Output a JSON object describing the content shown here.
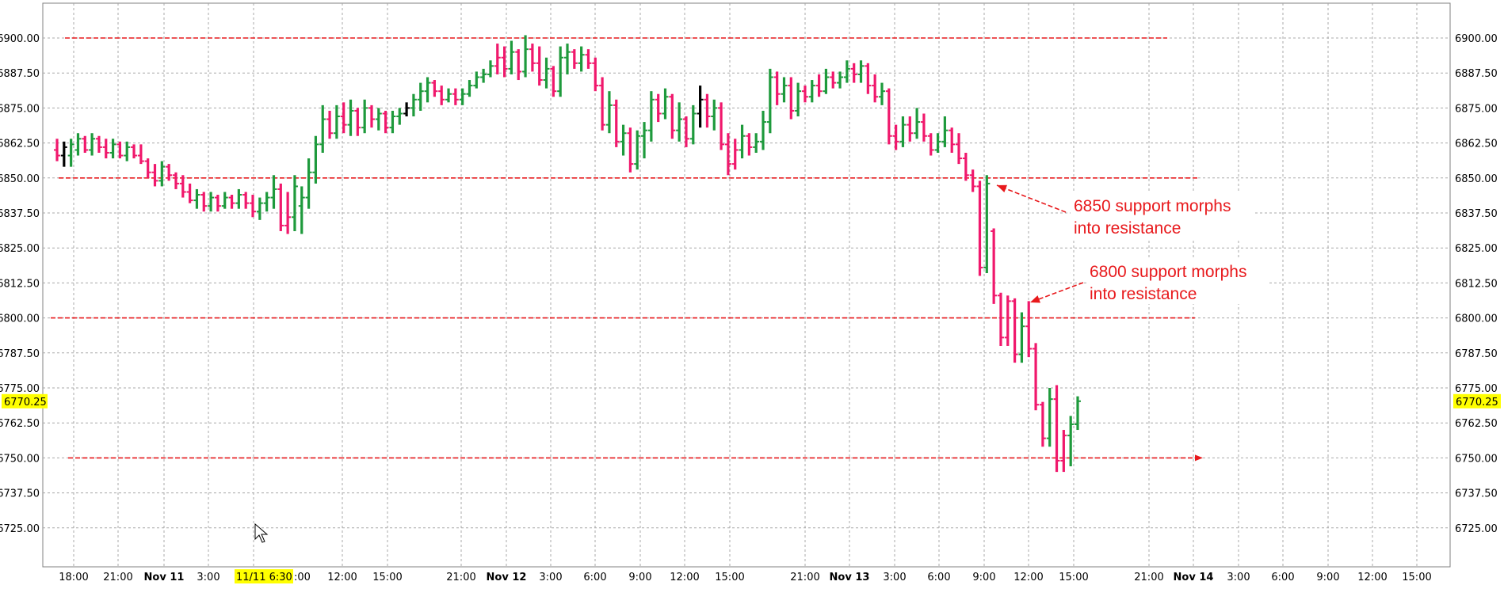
{
  "colors": {
    "up": "#1e9a3c",
    "down": "#f0186c",
    "neutral": "#000000",
    "level_line": "#e8191c",
    "annotation": "#e8191c",
    "highlight": "#ffff00",
    "grid": "#a8a8a8"
  },
  "cursor_icon": "mouse-pointer-icon",
  "chart_data": {
    "type": "ohlc",
    "title": "",
    "xlabel": "",
    "ylabel": "",
    "ylim": [
      6716,
      6906
    ],
    "grid": true,
    "y_ticks": [
      "6900.00",
      "6887.50",
      "6875.00",
      "6862.50",
      "6850.00",
      "6837.50",
      "6825.00",
      "6812.50",
      "6800.00",
      "6787.50",
      "6775.00",
      "6762.50",
      "6750.00",
      "6737.50",
      "6725.00"
    ],
    "x_ticks": [
      {
        "label": "18:00",
        "bold": false
      },
      {
        "label": "21:00",
        "bold": false
      },
      {
        "label": "Nov 11",
        "bold": true
      },
      {
        "label": "3:00",
        "bold": false
      },
      {
        "label": "11/11 6:30",
        "bold": false,
        "highlight": true
      },
      {
        "label": "12:00",
        "bold": false
      },
      {
        "label": "15:00",
        "bold": false
      },
      {
        "label": "21:00",
        "bold": false
      },
      {
        "label": "Nov 12",
        "bold": true
      },
      {
        "label": "3:00",
        "bold": false
      },
      {
        "label": "6:00",
        "bold": false
      },
      {
        "label": "9:00",
        "bold": false
      },
      {
        "label": "12:00",
        "bold": false
      },
      {
        "label": "15:00",
        "bold": false
      },
      {
        "label": "21:00",
        "bold": false
      },
      {
        "label": "Nov 13",
        "bold": true
      },
      {
        "label": "3:00",
        "bold": false
      },
      {
        "label": "6:00",
        "bold": false
      },
      {
        "label": "9:00",
        "bold": false
      },
      {
        "label": "12:00",
        "bold": false
      },
      {
        "label": "15:00",
        "bold": false
      },
      {
        "label": "21:00",
        "bold": false
      },
      {
        "label": "Nov 14",
        "bold": true
      },
      {
        "label": "3:00",
        "bold": false
      },
      {
        "label": "6:00",
        "bold": false
      },
      {
        "label": "9:00",
        "bold": false
      },
      {
        "label": "12:00",
        "bold": false
      },
      {
        "label": "15:00",
        "bold": false
      }
    ],
    "last_price": "6770.25",
    "horizontal_levels": [
      {
        "price": 6900,
        "extends_to": "Nov 14",
        "arrow": false
      },
      {
        "price": 6850,
        "extends_to": "Nov 14",
        "arrow": false
      },
      {
        "price": 6800,
        "extends_to": "Nov 14",
        "arrow": false
      },
      {
        "price": 6750,
        "extends_to": "Nov 14",
        "arrow": true
      }
    ],
    "annotations": [
      {
        "lines": [
          "6850 support morphs",
          "into resistance"
        ],
        "points_to": 6850
      },
      {
        "lines": [
          "6800 support morphs",
          " into resistance"
        ],
        "points_to": 6805
      }
    ],
    "bars": [
      {
        "o": 6860,
        "h": 6864,
        "l": 6856,
        "c": 6858,
        "d": "down"
      },
      {
        "o": 6858,
        "h": 6863,
        "l": 6854,
        "c": 6861,
        "d": "neutral"
      },
      {
        "o": 6858,
        "h": 6864,
        "l": 6854,
        "c": 6862,
        "d": "up"
      },
      {
        "o": 6860,
        "h": 6866,
        "l": 6858,
        "c": 6864,
        "d": "up"
      },
      {
        "o": 6864,
        "h": 6865,
        "l": 6859,
        "c": 6860,
        "d": "down"
      },
      {
        "o": 6860,
        "h": 6866,
        "l": 6858,
        "c": 6864,
        "d": "up"
      },
      {
        "o": 6864,
        "h": 6865,
        "l": 6859,
        "c": 6861,
        "d": "down"
      },
      {
        "o": 6861,
        "h": 6864,
        "l": 6857,
        "c": 6859,
        "d": "down"
      },
      {
        "o": 6859,
        "h": 6864,
        "l": 6857,
        "c": 6862,
        "d": "up"
      },
      {
        "o": 6862,
        "h": 6863,
        "l": 6857,
        "c": 6858,
        "d": "down"
      },
      {
        "o": 6858,
        "h": 6863,
        "l": 6856,
        "c": 6861,
        "d": "up"
      },
      {
        "o": 6861,
        "h": 6862,
        "l": 6857,
        "c": 6858,
        "d": "down"
      },
      {
        "o": 6858,
        "h": 6862,
        "l": 6855,
        "c": 6856,
        "d": "down"
      },
      {
        "o": 6856,
        "h": 6857,
        "l": 6850,
        "c": 6852,
        "d": "down"
      },
      {
        "o": 6852,
        "h": 6855,
        "l": 6847,
        "c": 6849,
        "d": "down"
      },
      {
        "o": 6849,
        "h": 6856,
        "l": 6847,
        "c": 6854,
        "d": "up"
      },
      {
        "o": 6854,
        "h": 6855,
        "l": 6849,
        "c": 6851,
        "d": "down"
      },
      {
        "o": 6851,
        "h": 6852,
        "l": 6846,
        "c": 6848,
        "d": "down"
      },
      {
        "o": 6848,
        "h": 6851,
        "l": 6843,
        "c": 6845,
        "d": "down"
      },
      {
        "o": 6845,
        "h": 6848,
        "l": 6841,
        "c": 6842,
        "d": "down"
      },
      {
        "o": 6842,
        "h": 6846,
        "l": 6839,
        "c": 6844,
        "d": "up"
      },
      {
        "o": 6844,
        "h": 6845,
        "l": 6838,
        "c": 6840,
        "d": "down"
      },
      {
        "o": 6840,
        "h": 6845,
        "l": 6838,
        "c": 6843,
        "d": "up"
      },
      {
        "o": 6843,
        "h": 6844,
        "l": 6838,
        "c": 6840,
        "d": "down"
      },
      {
        "o": 6840,
        "h": 6845,
        "l": 6839,
        "c": 6843,
        "d": "up"
      },
      {
        "o": 6843,
        "h": 6844,
        "l": 6839,
        "c": 6841,
        "d": "down"
      },
      {
        "o": 6841,
        "h": 6846,
        "l": 6839,
        "c": 6844,
        "d": "up"
      },
      {
        "o": 6844,
        "h": 6845,
        "l": 6839,
        "c": 6841,
        "d": "down"
      },
      {
        "o": 6841,
        "h": 6844,
        "l": 6836,
        "c": 6838,
        "d": "down"
      },
      {
        "o": 6838,
        "h": 6843,
        "l": 6835,
        "c": 6841,
        "d": "up"
      },
      {
        "o": 6841,
        "h": 6845,
        "l": 6838,
        "c": 6843,
        "d": "up"
      },
      {
        "o": 6843,
        "h": 6851,
        "l": 6839,
        "c": 6846,
        "d": "up"
      },
      {
        "o": 6846,
        "h": 6848,
        "l": 6831,
        "c": 6833,
        "d": "down"
      },
      {
        "o": 6833,
        "h": 6845,
        "l": 6830,
        "c": 6836,
        "d": "down"
      },
      {
        "o": 6836,
        "h": 6851,
        "l": 6831,
        "c": 6847,
        "d": "up"
      },
      {
        "o": 6840,
        "h": 6847,
        "l": 6830,
        "c": 6843,
        "d": "up"
      },
      {
        "o": 6843,
        "h": 6857,
        "l": 6839,
        "c": 6852,
        "d": "up"
      },
      {
        "o": 6852,
        "h": 6865,
        "l": 6848,
        "c": 6862,
        "d": "up"
      },
      {
        "o": 6862,
        "h": 6876,
        "l": 6859,
        "c": 6871,
        "d": "up"
      },
      {
        "o": 6871,
        "h": 6874,
        "l": 6864,
        "c": 6866,
        "d": "down"
      },
      {
        "o": 6866,
        "h": 6876,
        "l": 6864,
        "c": 6872,
        "d": "up"
      },
      {
        "o": 6872,
        "h": 6877,
        "l": 6866,
        "c": 6869,
        "d": "down"
      },
      {
        "o": 6869,
        "h": 6878,
        "l": 6865,
        "c": 6874,
        "d": "up"
      },
      {
        "o": 6874,
        "h": 6875,
        "l": 6865,
        "c": 6868,
        "d": "down"
      },
      {
        "o": 6868,
        "h": 6878,
        "l": 6866,
        "c": 6875,
        "d": "up"
      },
      {
        "o": 6875,
        "h": 6876,
        "l": 6868,
        "c": 6871,
        "d": "down"
      },
      {
        "o": 6871,
        "h": 6875,
        "l": 6867,
        "c": 6873,
        "d": "up"
      },
      {
        "o": 6873,
        "h": 6874,
        "l": 6866,
        "c": 6868,
        "d": "down"
      },
      {
        "o": 6868,
        "h": 6874,
        "l": 6866,
        "c": 6872,
        "d": "up"
      },
      {
        "o": 6872,
        "h": 6875,
        "l": 6869,
        "c": 6873,
        "d": "up"
      },
      {
        "o": 6873,
        "h": 6877,
        "l": 6872,
        "c": 6875,
        "d": "neutral"
      },
      {
        "o": 6875,
        "h": 6880,
        "l": 6872,
        "c": 6878,
        "d": "up"
      },
      {
        "o": 6878,
        "h": 6884,
        "l": 6874,
        "c": 6881,
        "d": "up"
      },
      {
        "o": 6881,
        "h": 6886,
        "l": 6877,
        "c": 6884,
        "d": "up"
      },
      {
        "o": 6884,
        "h": 6885,
        "l": 6879,
        "c": 6881,
        "d": "down"
      },
      {
        "o": 6881,
        "h": 6883,
        "l": 6876,
        "c": 6878,
        "d": "down"
      },
      {
        "o": 6878,
        "h": 6882,
        "l": 6877,
        "c": 6880,
        "d": "up"
      },
      {
        "o": 6880,
        "h": 6882,
        "l": 6876,
        "c": 6878,
        "d": "down"
      },
      {
        "o": 6878,
        "h": 6882,
        "l": 6876,
        "c": 6880,
        "d": "up"
      },
      {
        "o": 6880,
        "h": 6885,
        "l": 6879,
        "c": 6883,
        "d": "up"
      },
      {
        "o": 6883,
        "h": 6888,
        "l": 6882,
        "c": 6886,
        "d": "up"
      },
      {
        "o": 6886,
        "h": 6889,
        "l": 6884,
        "c": 6887,
        "d": "up"
      },
      {
        "o": 6887,
        "h": 6892,
        "l": 6886,
        "c": 6890,
        "d": "up"
      },
      {
        "o": 6890,
        "h": 6898,
        "l": 6887,
        "c": 6893,
        "d": "down"
      },
      {
        "o": 6893,
        "h": 6897,
        "l": 6886,
        "c": 6889,
        "d": "down"
      },
      {
        "o": 6889,
        "h": 6899,
        "l": 6887,
        "c": 6895,
        "d": "up"
      },
      {
        "o": 6895,
        "h": 6896,
        "l": 6885,
        "c": 6888,
        "d": "down"
      },
      {
        "o": 6888,
        "h": 6901,
        "l": 6886,
        "c": 6896,
        "d": "up"
      },
      {
        "o": 6896,
        "h": 6898,
        "l": 6888,
        "c": 6891,
        "d": "down"
      },
      {
        "o": 6891,
        "h": 6897,
        "l": 6883,
        "c": 6885,
        "d": "down"
      },
      {
        "o": 6885,
        "h": 6893,
        "l": 6882,
        "c": 6889,
        "d": "up"
      },
      {
        "o": 6889,
        "h": 6890,
        "l": 6879,
        "c": 6881,
        "d": "down"
      },
      {
        "o": 6881,
        "h": 6897,
        "l": 6879,
        "c": 6893,
        "d": "up"
      },
      {
        "o": 6893,
        "h": 6898,
        "l": 6887,
        "c": 6895,
        "d": "up"
      },
      {
        "o": 6895,
        "h": 6896,
        "l": 6889,
        "c": 6891,
        "d": "down"
      },
      {
        "o": 6891,
        "h": 6897,
        "l": 6888,
        "c": 6894,
        "d": "up"
      },
      {
        "o": 6894,
        "h": 6896,
        "l": 6889,
        "c": 6891,
        "d": "down"
      },
      {
        "o": 6891,
        "h": 6893,
        "l": 6881,
        "c": 6883,
        "d": "down"
      },
      {
        "o": 6883,
        "h": 6886,
        "l": 6867,
        "c": 6869,
        "d": "down"
      },
      {
        "o": 6869,
        "h": 6881,
        "l": 6866,
        "c": 6876,
        "d": "up"
      },
      {
        "o": 6876,
        "h": 6878,
        "l": 6861,
        "c": 6863,
        "d": "down"
      },
      {
        "o": 6863,
        "h": 6869,
        "l": 6858,
        "c": 6866,
        "d": "up"
      },
      {
        "o": 6866,
        "h": 6868,
        "l": 6852,
        "c": 6855,
        "d": "down"
      },
      {
        "o": 6855,
        "h": 6867,
        "l": 6853,
        "c": 6865,
        "d": "up"
      },
      {
        "o": 6865,
        "h": 6870,
        "l": 6857,
        "c": 6867,
        "d": "up"
      },
      {
        "o": 6867,
        "h": 6881,
        "l": 6863,
        "c": 6878,
        "d": "up"
      },
      {
        "o": 6878,
        "h": 6880,
        "l": 6870,
        "c": 6873,
        "d": "down"
      },
      {
        "o": 6873,
        "h": 6882,
        "l": 6871,
        "c": 6879,
        "d": "up"
      },
      {
        "o": 6879,
        "h": 6880,
        "l": 6864,
        "c": 6867,
        "d": "down"
      },
      {
        "o": 6867,
        "h": 6877,
        "l": 6863,
        "c": 6871,
        "d": "up"
      },
      {
        "o": 6871,
        "h": 6872,
        "l": 6861,
        "c": 6864,
        "d": "down"
      },
      {
        "o": 6864,
        "h": 6876,
        "l": 6862,
        "c": 6873,
        "d": "up"
      },
      {
        "o": 6873,
        "h": 6883,
        "l": 6868,
        "c": 6878,
        "d": "neutral"
      },
      {
        "o": 6878,
        "h": 6880,
        "l": 6868,
        "c": 6872,
        "d": "down"
      },
      {
        "o": 6872,
        "h": 6878,
        "l": 6867,
        "c": 6875,
        "d": "up"
      },
      {
        "o": 6875,
        "h": 6877,
        "l": 6860,
        "c": 6862,
        "d": "down"
      },
      {
        "o": 6862,
        "h": 6866,
        "l": 6851,
        "c": 6855,
        "d": "down"
      },
      {
        "o": 6855,
        "h": 6864,
        "l": 6853,
        "c": 6860,
        "d": "down"
      },
      {
        "o": 6860,
        "h": 6869,
        "l": 6857,
        "c": 6865,
        "d": "up"
      },
      {
        "o": 6865,
        "h": 6866,
        "l": 6858,
        "c": 6861,
        "d": "down"
      },
      {
        "o": 6861,
        "h": 6866,
        "l": 6859,
        "c": 6863,
        "d": "up"
      },
      {
        "o": 6863,
        "h": 6874,
        "l": 6860,
        "c": 6870,
        "d": "up"
      },
      {
        "o": 6870,
        "h": 6889,
        "l": 6866,
        "c": 6886,
        "d": "up"
      },
      {
        "o": 6886,
        "h": 6888,
        "l": 6876,
        "c": 6880,
        "d": "down"
      },
      {
        "o": 6880,
        "h": 6886,
        "l": 6877,
        "c": 6883,
        "d": "up"
      },
      {
        "o": 6883,
        "h": 6886,
        "l": 6871,
        "c": 6874,
        "d": "down"
      },
      {
        "o": 6874,
        "h": 6884,
        "l": 6872,
        "c": 6881,
        "d": "up"
      },
      {
        "o": 6881,
        "h": 6883,
        "l": 6877,
        "c": 6879,
        "d": "down"
      },
      {
        "o": 6879,
        "h": 6885,
        "l": 6877,
        "c": 6883,
        "d": "up"
      },
      {
        "o": 6883,
        "h": 6887,
        "l": 6879,
        "c": 6881,
        "d": "down"
      },
      {
        "o": 6881,
        "h": 6889,
        "l": 6880,
        "c": 6886,
        "d": "up"
      },
      {
        "o": 6886,
        "h": 6888,
        "l": 6882,
        "c": 6884,
        "d": "down"
      },
      {
        "o": 6884,
        "h": 6888,
        "l": 6882,
        "c": 6886,
        "d": "up"
      },
      {
        "o": 6886,
        "h": 6892,
        "l": 6884,
        "c": 6889,
        "d": "up"
      },
      {
        "o": 6889,
        "h": 6891,
        "l": 6884,
        "c": 6887,
        "d": "down"
      },
      {
        "o": 6887,
        "h": 6892,
        "l": 6884,
        "c": 6890,
        "d": "up"
      },
      {
        "o": 6890,
        "h": 6891,
        "l": 6880,
        "c": 6883,
        "d": "down"
      },
      {
        "o": 6883,
        "h": 6887,
        "l": 6877,
        "c": 6879,
        "d": "down"
      },
      {
        "o": 6879,
        "h": 6884,
        "l": 6876,
        "c": 6881,
        "d": "up"
      },
      {
        "o": 6881,
        "h": 6882,
        "l": 6862,
        "c": 6865,
        "d": "down"
      },
      {
        "o": 6865,
        "h": 6869,
        "l": 6860,
        "c": 6863,
        "d": "down"
      },
      {
        "o": 6863,
        "h": 6872,
        "l": 6861,
        "c": 6869,
        "d": "up"
      },
      {
        "o": 6869,
        "h": 6872,
        "l": 6863,
        "c": 6866,
        "d": "down"
      },
      {
        "o": 6866,
        "h": 6875,
        "l": 6864,
        "c": 6870,
        "d": "up"
      },
      {
        "o": 6870,
        "h": 6873,
        "l": 6863,
        "c": 6865,
        "d": "down"
      },
      {
        "o": 6865,
        "h": 6866,
        "l": 6858,
        "c": 6860,
        "d": "down"
      },
      {
        "o": 6860,
        "h": 6866,
        "l": 6859,
        "c": 6863,
        "d": "up"
      },
      {
        "o": 6863,
        "h": 6872,
        "l": 6861,
        "c": 6867,
        "d": "up"
      },
      {
        "o": 6867,
        "h": 6868,
        "l": 6859,
        "c": 6862,
        "d": "down"
      },
      {
        "o": 6862,
        "h": 6866,
        "l": 6855,
        "c": 6857,
        "d": "down"
      },
      {
        "o": 6857,
        "h": 6859,
        "l": 6849,
        "c": 6851,
        "d": "down"
      },
      {
        "o": 6851,
        "h": 6853,
        "l": 6845,
        "c": 6847,
        "d": "down"
      },
      {
        "o": 6847,
        "h": 6849,
        "l": 6815,
        "c": 6818,
        "d": "down"
      },
      {
        "o": 6818,
        "h": 6851,
        "l": 6816,
        "c": 6848,
        "d": "up"
      },
      {
        "o": 6831,
        "h": 6832,
        "l": 6805,
        "c": 6808,
        "d": "down"
      },
      {
        "o": 6808,
        "h": 6809,
        "l": 6790,
        "c": 6793,
        "d": "down"
      },
      {
        "o": 6793,
        "h": 6808,
        "l": 6790,
        "c": 6806,
        "d": "down"
      },
      {
        "o": 6806,
        "h": 6807,
        "l": 6784,
        "c": 6787,
        "d": "down"
      },
      {
        "o": 6787,
        "h": 6802,
        "l": 6784,
        "c": 6797,
        "d": "up"
      },
      {
        "o": 6797,
        "h": 6806,
        "l": 6786,
        "c": 6789,
        "d": "down"
      },
      {
        "o": 6789,
        "h": 6791,
        "l": 6767,
        "c": 6769,
        "d": "down"
      },
      {
        "o": 6769,
        "h": 6770,
        "l": 6754,
        "c": 6757,
        "d": "down"
      },
      {
        "o": 6757,
        "h": 6775,
        "l": 6754,
        "c": 6771,
        "d": "up"
      },
      {
        "o": 6771,
        "h": 6776,
        "l": 6745,
        "c": 6749,
        "d": "down"
      },
      {
        "o": 6749,
        "h": 6760,
        "l": 6745,
        "c": 6758,
        "d": "down"
      },
      {
        "o": 6758,
        "h": 6765,
        "l": 6747,
        "c": 6762,
        "d": "up"
      },
      {
        "o": 6762,
        "h": 6772,
        "l": 6760,
        "c": 6770.25,
        "d": "up"
      }
    ]
  }
}
